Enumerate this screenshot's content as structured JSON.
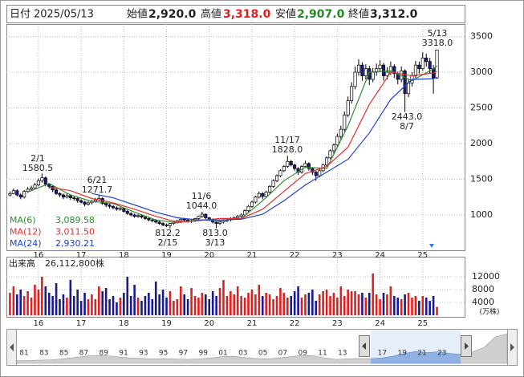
{
  "header": {
    "date_label": "日付",
    "date": "2025/05/13",
    "items": [
      {
        "label": "始値",
        "value": "2,920.0"
      },
      {
        "label": "高値",
        "value": "3,318.0"
      },
      {
        "label": "安値",
        "value": "2,907.0"
      },
      {
        "label": "終値",
        "value": "3,312.0"
      }
    ]
  },
  "chart_data": {
    "type": "candlestick",
    "xlim": [
      -1,
      128
    ],
    "ylim": [
      505,
      3675
    ],
    "yticks": [
      1000,
      1500,
      2000,
      2500,
      3000,
      3500
    ],
    "xticks": [
      {
        "value": 8,
        "label": "16"
      },
      {
        "value": 20,
        "label": "17"
      },
      {
        "value": 32,
        "label": "18"
      },
      {
        "value": 44,
        "label": "19"
      },
      {
        "value": 56,
        "label": "20"
      },
      {
        "value": 68,
        "label": "21"
      },
      {
        "value": 80,
        "label": "22"
      },
      {
        "value": 92,
        "label": "23"
      },
      {
        "value": 104,
        "label": "24"
      },
      {
        "value": 116,
        "label": "25"
      }
    ],
    "grid": true,
    "up_color": "#ffffff",
    "down_color": "#1a1a80",
    "ohlc": [
      [
        1280,
        1330,
        1260,
        1300
      ],
      [
        1300,
        1370,
        1290,
        1340
      ],
      [
        1340,
        1360,
        1260,
        1280
      ],
      [
        1280,
        1300,
        1220,
        1250
      ],
      [
        1250,
        1350,
        1230,
        1330
      ],
      [
        1330,
        1390,
        1310,
        1360
      ],
      [
        1360,
        1410,
        1340,
        1380
      ],
      [
        1380,
        1450,
        1360,
        1420
      ],
      [
        1420,
        1510,
        1400,
        1480
      ],
      [
        1480,
        1580.5,
        1450,
        1520
      ],
      [
        1520,
        1540,
        1400,
        1430
      ],
      [
        1430,
        1450,
        1370,
        1400
      ],
      [
        1400,
        1420,
        1320,
        1350
      ],
      [
        1350,
        1370,
        1280,
        1300
      ],
      [
        1300,
        1320,
        1250,
        1280
      ],
      [
        1280,
        1300,
        1220,
        1250
      ],
      [
        1250,
        1300,
        1230,
        1270
      ],
      [
        1270,
        1290,
        1210,
        1240
      ],
      [
        1240,
        1260,
        1200,
        1230
      ],
      [
        1230,
        1250,
        1170,
        1200
      ],
      [
        1200,
        1220,
        1160,
        1180
      ],
      [
        1180,
        1200,
        1120,
        1150
      ],
      [
        1150,
        1190,
        1130,
        1170
      ],
      [
        1170,
        1210,
        1150,
        1190
      ],
      [
        1190,
        1240,
        1170,
        1210
      ],
      [
        1210,
        1271.7,
        1190,
        1230
      ],
      [
        1230,
        1250,
        1140,
        1160
      ],
      [
        1160,
        1180,
        1110,
        1140
      ],
      [
        1140,
        1160,
        1090,
        1120
      ],
      [
        1120,
        1140,
        1080,
        1100
      ],
      [
        1100,
        1120,
        1060,
        1080
      ],
      [
        1080,
        1110,
        1060,
        1090
      ],
      [
        1090,
        1100,
        1030,
        1050
      ],
      [
        1050,
        1070,
        1000,
        1020
      ],
      [
        1020,
        1040,
        980,
        1000
      ],
      [
        1000,
        1020,
        960,
        980
      ],
      [
        980,
        1010,
        960,
        990
      ],
      [
        990,
        1000,
        950,
        970
      ],
      [
        970,
        980,
        930,
        950
      ],
      [
        950,
        970,
        910,
        930
      ],
      [
        930,
        950,
        900,
        920
      ],
      [
        920,
        940,
        880,
        900
      ],
      [
        900,
        920,
        860,
        880
      ],
      [
        880,
        900,
        840,
        860
      ],
      [
        860,
        880,
        830,
        850
      ],
      [
        850,
        890,
        812.2,
        880
      ],
      [
        880,
        910,
        860,
        900
      ],
      [
        900,
        930,
        880,
        920
      ],
      [
        920,
        950,
        900,
        940
      ],
      [
        940,
        960,
        910,
        930
      ],
      [
        930,
        950,
        890,
        910
      ],
      [
        910,
        940,
        890,
        920
      ],
      [
        920,
        960,
        900,
        950
      ],
      [
        950,
        990,
        930,
        980
      ],
      [
        980,
        1044,
        960,
        1010
      ],
      [
        1010,
        1020,
        940,
        960
      ],
      [
        960,
        970,
        920,
        940
      ],
      [
        940,
        950,
        880,
        900
      ],
      [
        900,
        910,
        813,
        880
      ],
      [
        880,
        920,
        860,
        900
      ],
      [
        900,
        940,
        880,
        920
      ],
      [
        920,
        950,
        900,
        930
      ],
      [
        930,
        970,
        910,
        950
      ],
      [
        950,
        980,
        930,
        960
      ],
      [
        960,
        1000,
        940,
        980
      ],
      [
        980,
        1020,
        960,
        1000
      ],
      [
        1000,
        1080,
        990,
        1060
      ],
      [
        1060,
        1140,
        1040,
        1120
      ],
      [
        1120,
        1200,
        1100,
        1180
      ],
      [
        1180,
        1270,
        1160,
        1250
      ],
      [
        1250,
        1330,
        1230,
        1300
      ],
      [
        1300,
        1320,
        1220,
        1260
      ],
      [
        1260,
        1340,
        1240,
        1320
      ],
      [
        1320,
        1420,
        1300,
        1400
      ],
      [
        1400,
        1500,
        1380,
        1480
      ],
      [
        1480,
        1570,
        1460,
        1550
      ],
      [
        1550,
        1640,
        1530,
        1620
      ],
      [
        1620,
        1700,
        1600,
        1680
      ],
      [
        1680,
        1828,
        1660,
        1750
      ],
      [
        1750,
        1770,
        1680,
        1700
      ],
      [
        1700,
        1720,
        1620,
        1650
      ],
      [
        1650,
        1670,
        1560,
        1600
      ],
      [
        1600,
        1700,
        1580,
        1680
      ],
      [
        1680,
        1760,
        1660,
        1720
      ],
      [
        1720,
        1740,
        1620,
        1650
      ],
      [
        1650,
        1670,
        1560,
        1600
      ],
      [
        1600,
        1620,
        1480,
        1550
      ],
      [
        1550,
        1640,
        1530,
        1620
      ],
      [
        1620,
        1720,
        1600,
        1700
      ],
      [
        1700,
        1820,
        1680,
        1800
      ],
      [
        1800,
        1920,
        1780,
        1900
      ],
      [
        1900,
        2000,
        1860,
        1980
      ],
      [
        1980,
        2140,
        1950,
        2100
      ],
      [
        2100,
        2250,
        2060,
        2200
      ],
      [
        2200,
        2450,
        2170,
        2400
      ],
      [
        2400,
        2660,
        2370,
        2600
      ],
      [
        2600,
        2860,
        2560,
        2800
      ],
      [
        2800,
        3080,
        2760,
        3000
      ],
      [
        3000,
        3180,
        2950,
        3100
      ],
      [
        3100,
        3140,
        2880,
        2950
      ],
      [
        2950,
        3110,
        2900,
        3050
      ],
      [
        3050,
        3090,
        2820,
        2900
      ],
      [
        2900,
        3060,
        2860,
        3000
      ],
      [
        3000,
        3120,
        2950,
        3050
      ],
      [
        3050,
        3170,
        3000,
        3100
      ],
      [
        3100,
        3130,
        2880,
        2950
      ],
      [
        2950,
        3070,
        2900,
        3000
      ],
      [
        3000,
        3150,
        2960,
        3080
      ],
      [
        3080,
        3110,
        2920,
        2980
      ],
      [
        2980,
        3010,
        2830,
        2900
      ],
      [
        2900,
        3080,
        2860,
        3020
      ],
      [
        3020,
        3040,
        2443,
        2700
      ],
      [
        2700,
        2900,
        2650,
        2850
      ],
      [
        2850,
        3000,
        2800,
        2950
      ],
      [
        2950,
        3160,
        2920,
        3100
      ],
      [
        3100,
        3150,
        2980,
        3050
      ],
      [
        3050,
        3280,
        3020,
        3200
      ],
      [
        3200,
        3260,
        3080,
        3150
      ],
      [
        3150,
        3200,
        2980,
        3050
      ],
      [
        3050,
        3100,
        2700,
        2920
      ],
      [
        2920,
        3318,
        2907,
        3312
      ]
    ],
    "series": [
      {
        "name": "MA(6)",
        "color": "#2e8b2e",
        "latest_label": "3,089.58",
        "x": [
          5,
          11,
          17,
          23,
          29,
          35,
          41,
          47,
          53,
          59,
          65,
          71,
          77,
          83,
          89,
          95,
          101,
          107,
          113,
          119,
          120
        ],
        "values": [
          1320,
          1440,
          1280,
          1190,
          1160,
          1040,
          930,
          890,
          930,
          920,
          950,
          1200,
          1480,
          1670,
          1650,
          2250,
          3000,
          3020,
          2880,
          3050,
          3089.58
        ]
      },
      {
        "name": "MA(12)",
        "color": "#e03030",
        "latest_label": "3,011.50",
        "x": [
          11,
          17,
          23,
          29,
          35,
          41,
          47,
          53,
          59,
          65,
          71,
          77,
          83,
          89,
          95,
          101,
          107,
          113,
          119,
          120
        ],
        "values": [
          1390,
          1340,
          1230,
          1170,
          1080,
          980,
          900,
          920,
          950,
          950,
          1080,
          1330,
          1580,
          1680,
          1950,
          2550,
          3000,
          2950,
          2990,
          3011.5
        ]
      },
      {
        "name": "MA(24)",
        "color": "#2040d0",
        "latest_label": "2,930.21",
        "x": [
          23,
          29,
          35,
          41,
          47,
          53,
          59,
          65,
          71,
          77,
          83,
          89,
          95,
          101,
          107,
          113,
          119,
          120
        ],
        "values": [
          1300,
          1240,
          1140,
          1040,
          960,
          930,
          930,
          940,
          1010,
          1200,
          1420,
          1600,
          1780,
          2150,
          2620,
          2900,
          2910,
          2930.21
        ]
      }
    ],
    "annotations": [
      {
        "date": "2/1",
        "price": "1580.5"
      },
      {
        "date": "6/21",
        "price": "1271.7"
      },
      {
        "date": "11/6",
        "price": "1044.0"
      },
      {
        "date": "2/15",
        "price": "812.2"
      },
      {
        "date": "3/13",
        "price": "813.0"
      },
      {
        "date": "11/17",
        "price": "1828.0"
      },
      {
        "date": "8/7",
        "price": "2443.0"
      },
      {
        "date": "5/13",
        "price": "3318.0"
      }
    ],
    "volume": {
      "title": "出来高",
      "total": "26,112,800株",
      "unit": "(万株)",
      "up_color": "#e02020",
      "down_color": "#1a1a8c",
      "ylim": [
        0,
        14000
      ],
      "yticks": [
        4000,
        8000,
        12000
      ],
      "values": [
        7000,
        9000,
        6500,
        8000,
        6000,
        7500,
        5500,
        9500,
        8000,
        12000,
        9000,
        7000,
        6000,
        10000,
        5000,
        6500,
        5500,
        11000,
        6000,
        8000,
        4500,
        7000,
        5000,
        6500,
        5000,
        9000,
        7500,
        8500,
        5000,
        6000,
        4000,
        5500,
        7000,
        12000,
        6000,
        9500,
        5500,
        4500,
        6000,
        7000,
        5000,
        10500,
        6500,
        8000,
        5500,
        7500,
        4500,
        5000,
        9000,
        6500,
        5000,
        8500,
        6000,
        5500,
        7000,
        6500,
        5000,
        7500,
        6000,
        8500,
        11000,
        6000,
        7500,
        6500,
        9000,
        6000,
        5500,
        7000,
        8000,
        6500,
        9500,
        6000,
        7000,
        6500,
        5000,
        6000,
        8500,
        7000,
        5500,
        6000,
        7500,
        9000,
        5500,
        6500,
        7000,
        8000,
        4500,
        6500,
        7500,
        8000,
        6000,
        7000,
        5500,
        9000,
        6000,
        8000,
        7500,
        7500,
        6500,
        7000,
        5500,
        7000,
        13000,
        6500,
        5000,
        7000,
        6500,
        9000,
        6000,
        5500,
        5000,
        6500,
        7000,
        5500,
        6000,
        4500,
        6000,
        5500,
        4500,
        6000,
        2611.28
      ]
    },
    "navigator": {
      "labels": [
        "81",
        "83",
        "85",
        "87",
        "89",
        "91",
        "93",
        "95",
        "97",
        "99",
        "01",
        "03",
        "05",
        "07",
        "09",
        "11",
        "13",
        null,
        "17",
        "19",
        "21",
        "23"
      ],
      "ylim": [
        0,
        3500
      ],
      "values": [
        300,
        320,
        350,
        400,
        500,
        650,
        800,
        900,
        850,
        700,
        600,
        550,
        500,
        520,
        480,
        450,
        500,
        600,
        750,
        800,
        650,
        550,
        500,
        600,
        750,
        900,
        850,
        600,
        450,
        500,
        550,
        520,
        600,
        800,
        1100,
        1350,
        1200,
        1300,
        1100,
        1000,
        1300,
        1800,
        3000,
        3300
      ]
    }
  }
}
